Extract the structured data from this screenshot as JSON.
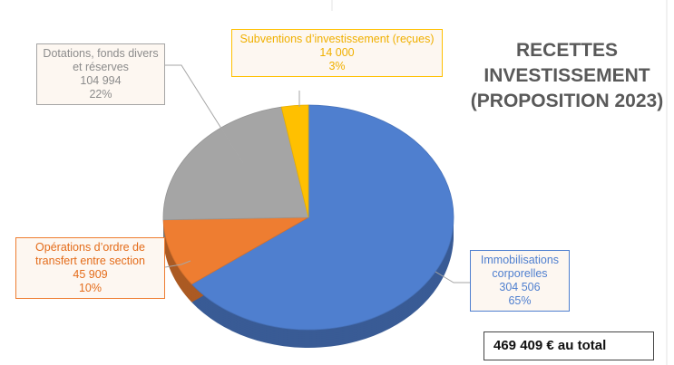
{
  "chart_data": {
    "type": "pie",
    "title": "RECETTES INVESTISSEMENT (PROPOSITION 2023)",
    "categories": [
      "Immobilisations corporelles",
      "Opérations d’ordre de transfert entre section",
      "Dotations, fonds divers et réserves",
      "Subventions d’investissement (reçues)"
    ],
    "values": [
      304506,
      45909,
      104994,
      14000
    ],
    "value_labels": [
      "304 506",
      "45 909",
      "104 994",
      "14 000"
    ],
    "percent_labels": [
      "65%",
      "10%",
      "22%",
      "3%"
    ],
    "colors": [
      "#4f7fcf",
      "#ee7d31",
      "#a5a5a5",
      "#ffc000"
    ],
    "annotation": "469 409 € au total"
  }
}
